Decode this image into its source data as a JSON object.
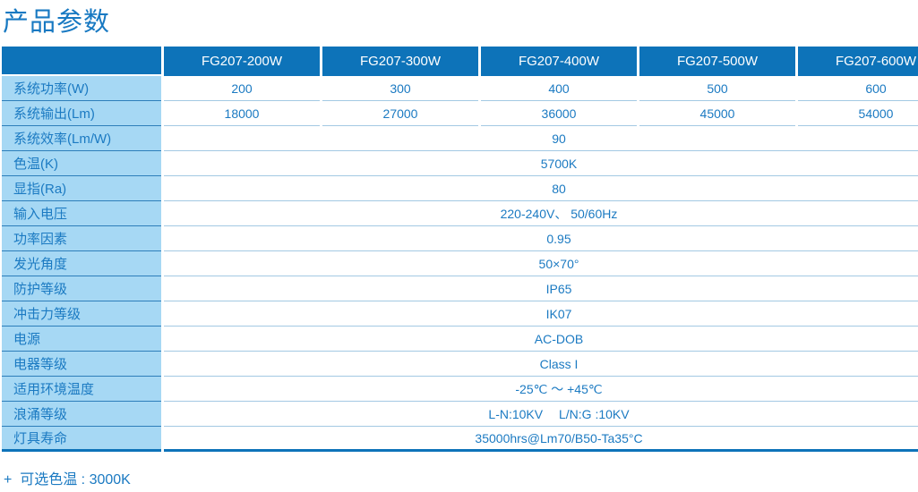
{
  "title": "产品参数",
  "footnote": "+  可选色温 : 3000K",
  "colors": {
    "header_bg": "#0d73b9",
    "label_bg": "#a6d8f4",
    "text_blue": "#1b7ac2",
    "label_divider": "#2d7eba",
    "row_divider": "#a3c9e3",
    "bottom_border": "#0d73b9"
  },
  "table": {
    "corner_label": "",
    "models": [
      "FG207-200W",
      "FG207-300W",
      "FG207-400W",
      "FG207-500W",
      "FG207-600W"
    ],
    "per_model_rows": [
      {
        "label": "系统功率(W)",
        "values": [
          "200",
          "300",
          "400",
          "500",
          "600"
        ]
      },
      {
        "label": "系统输出(Lm)",
        "values": [
          "18000",
          "27000",
          "36000",
          "45000",
          "54000"
        ]
      }
    ],
    "merged_rows": [
      {
        "label": "系统效率(Lm/W)",
        "value": "90"
      },
      {
        "label": "色温(K)",
        "value": "5700K"
      },
      {
        "label": "显指(Ra)",
        "value": "80"
      },
      {
        "label": "输入电压",
        "value": "220-240V、 50/60Hz"
      },
      {
        "label": "功率因素",
        "value": "0.95"
      },
      {
        "label": "发光角度",
        "value": "50×70°"
      },
      {
        "label": "防护等级",
        "value": "IP65"
      },
      {
        "label": "冲击力等级",
        "value": "IK07"
      },
      {
        "label": "电源",
        "value": "AC-DOB"
      },
      {
        "label": "电器等级",
        "value": "Class I"
      },
      {
        "label": "适用环境温度",
        "value": "-25℃ ～ +45℃"
      },
      {
        "label": "浪涌等级",
        "value": "L-N:10KV　 L/N:G :10KV"
      },
      {
        "label": "灯具寿命",
        "value": "35000hrs@Lm70/B50-Ta35°C"
      }
    ]
  }
}
